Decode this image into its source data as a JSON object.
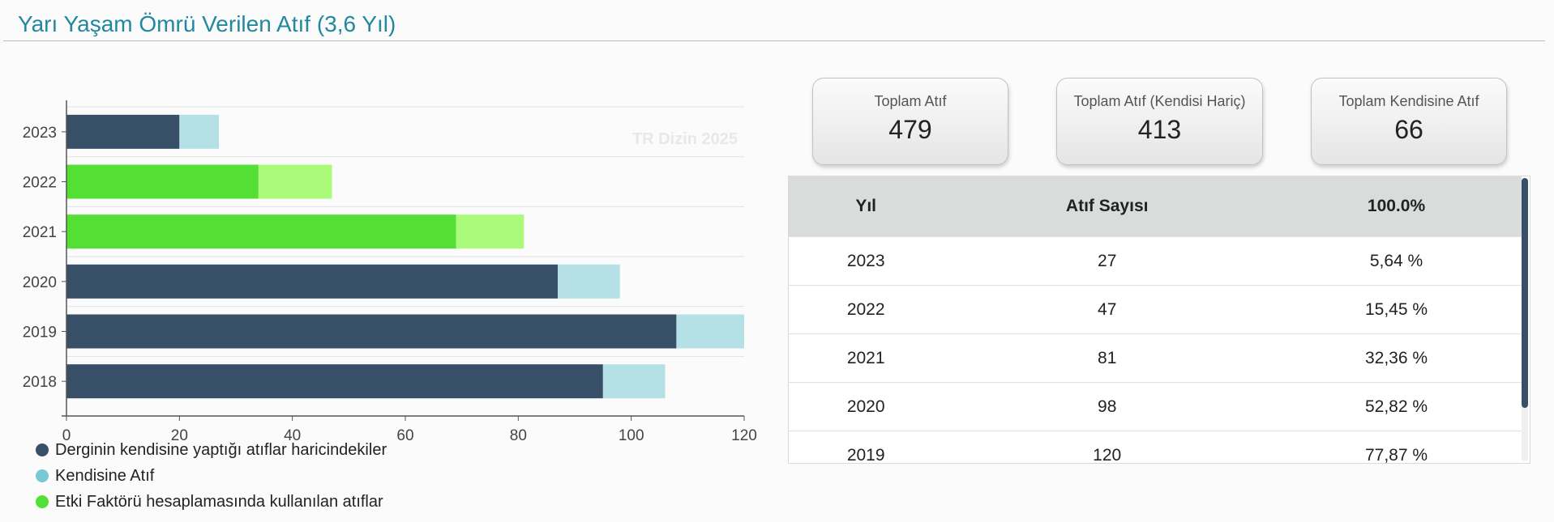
{
  "page": {
    "title": "Yarı Yaşam Ömrü Verilen Atıf (3,6 Yıl)"
  },
  "chart_data": {
    "type": "bar",
    "orientation": "horizontal",
    "stacked": true,
    "watermark": "TR Dizin 2025",
    "categories": [
      "2023",
      "2022",
      "2021",
      "2020",
      "2019",
      "2018"
    ],
    "series": [
      {
        "name": "Derginin kendisine yaptığı atıflar haricindekiler",
        "values": [
          20,
          34,
          69,
          87,
          108,
          95
        ],
        "colors": [
          "#374f67",
          "#53df33",
          "#53df33",
          "#374f67",
          "#374f67",
          "#374f67"
        ]
      },
      {
        "name": "Kendisine Atıf",
        "values": [
          7,
          13,
          12,
          11,
          12,
          11
        ],
        "colors": [
          "#b5e0e5",
          "#a9fb79",
          "#a9fb79",
          "#b5e0e5",
          "#b5e0e5",
          "#b5e0e5"
        ]
      }
    ],
    "xlim": [
      0,
      120
    ],
    "xticks": [
      0,
      20,
      40,
      60,
      80,
      100,
      120
    ],
    "grid": true,
    "legend_position": "bottom-left"
  },
  "legend": [
    {
      "label": "Derginin kendisine yaptığı atıflar haricindekiler",
      "color": "#374f67"
    },
    {
      "label": "Kendisine Atıf",
      "color": "#76c9d2"
    },
    {
      "label": "Etki Faktörü hesaplamasında kullanılan atıflar",
      "color": "#53df33"
    }
  ],
  "cards": [
    {
      "label": "Toplam Atıf",
      "value": "479"
    },
    {
      "label": "Toplam Atıf (Kendisi Hariç)",
      "value": "413"
    },
    {
      "label": "Toplam Kendisine Atıf",
      "value": "66"
    }
  ],
  "table": {
    "headers": [
      "Yıl",
      "Atıf Sayısı",
      "100.0%"
    ],
    "rows": [
      [
        "2023",
        "27",
        "5,64 %"
      ],
      [
        "2022",
        "47",
        "15,45 %"
      ],
      [
        "2021",
        "81",
        "32,36 %"
      ],
      [
        "2020",
        "98",
        "52,82 %"
      ],
      [
        "2019",
        "120",
        "77,87 %"
      ]
    ]
  }
}
